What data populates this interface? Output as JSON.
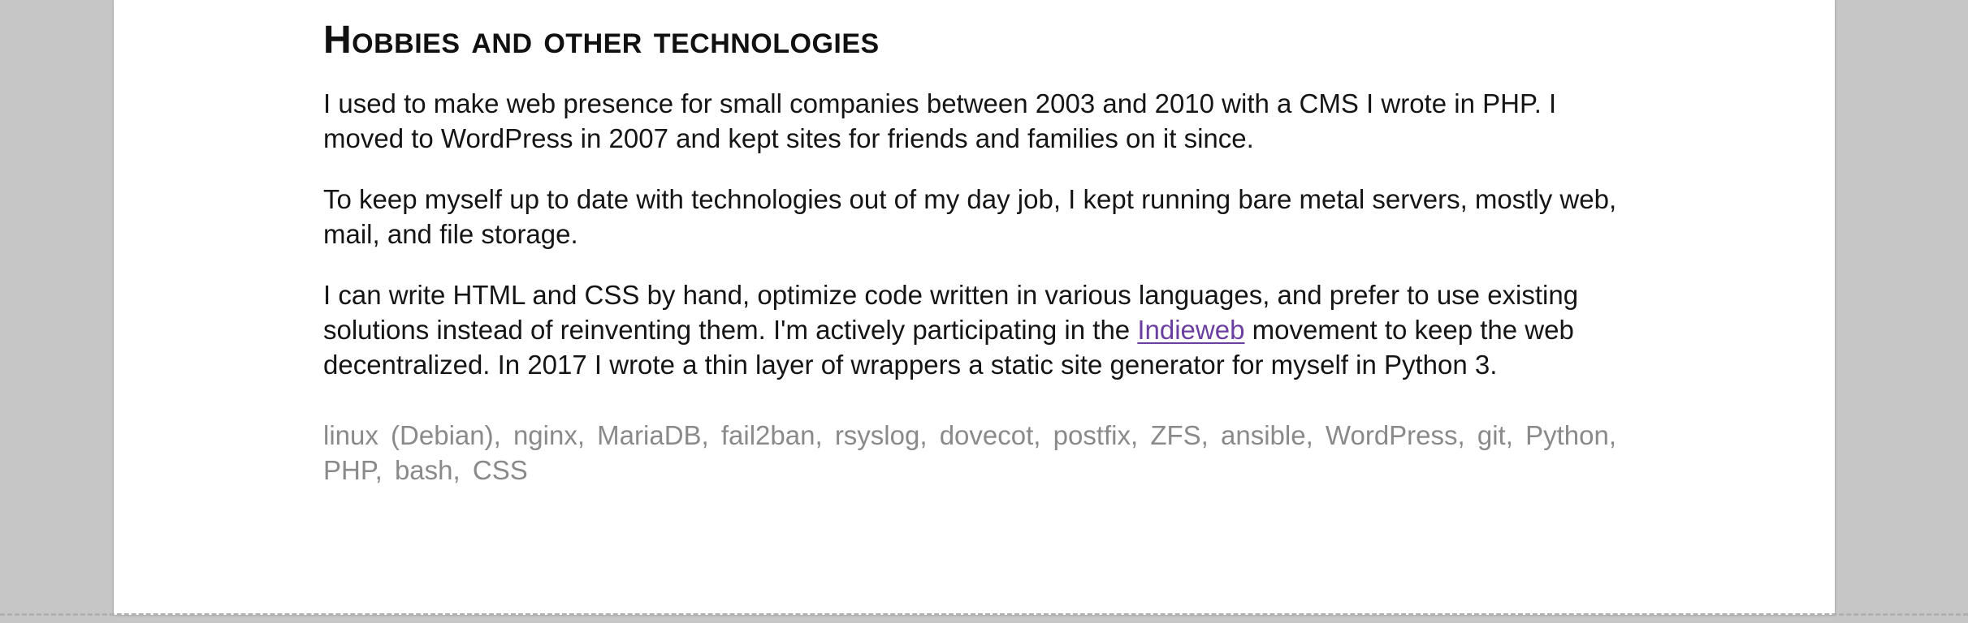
{
  "section": {
    "title": "Hobbies and other technologies",
    "paragraphs": [
      "I used to make web presence for small companies between 2003 and 2010 with a CMS I wrote in PHP. I moved to WordPress in 2007 and kept sites for friends and families on it since.",
      "To keep myself up to date with technologies out of my day job, I kept running bare metal servers, mostly web, mail, and file storage."
    ],
    "p3_before": "I can write HTML and CSS by hand, optimize code written in various languages, and prefer to use existing solutions instead of reinventing them. I'm actively participating in the ",
    "p3_link": "Indieweb",
    "p3_after": " movement to keep the web decentralized. In 2017 I wrote a thin layer of wrappers a static site generator for myself in Python 3.",
    "tags": [
      "linux (Debian)",
      "nginx",
      "MariaDB",
      "fail2ban",
      "rsyslog",
      "dovecot",
      "postfix",
      "ZFS",
      "ansible",
      "WordPress",
      "git",
      "Python",
      "PHP",
      "bash",
      "CSS"
    ]
  },
  "colors": {
    "link": "#6b3fa0",
    "tags": "#8a8a8a",
    "background": "#c6c6c6",
    "page": "#ffffff"
  }
}
